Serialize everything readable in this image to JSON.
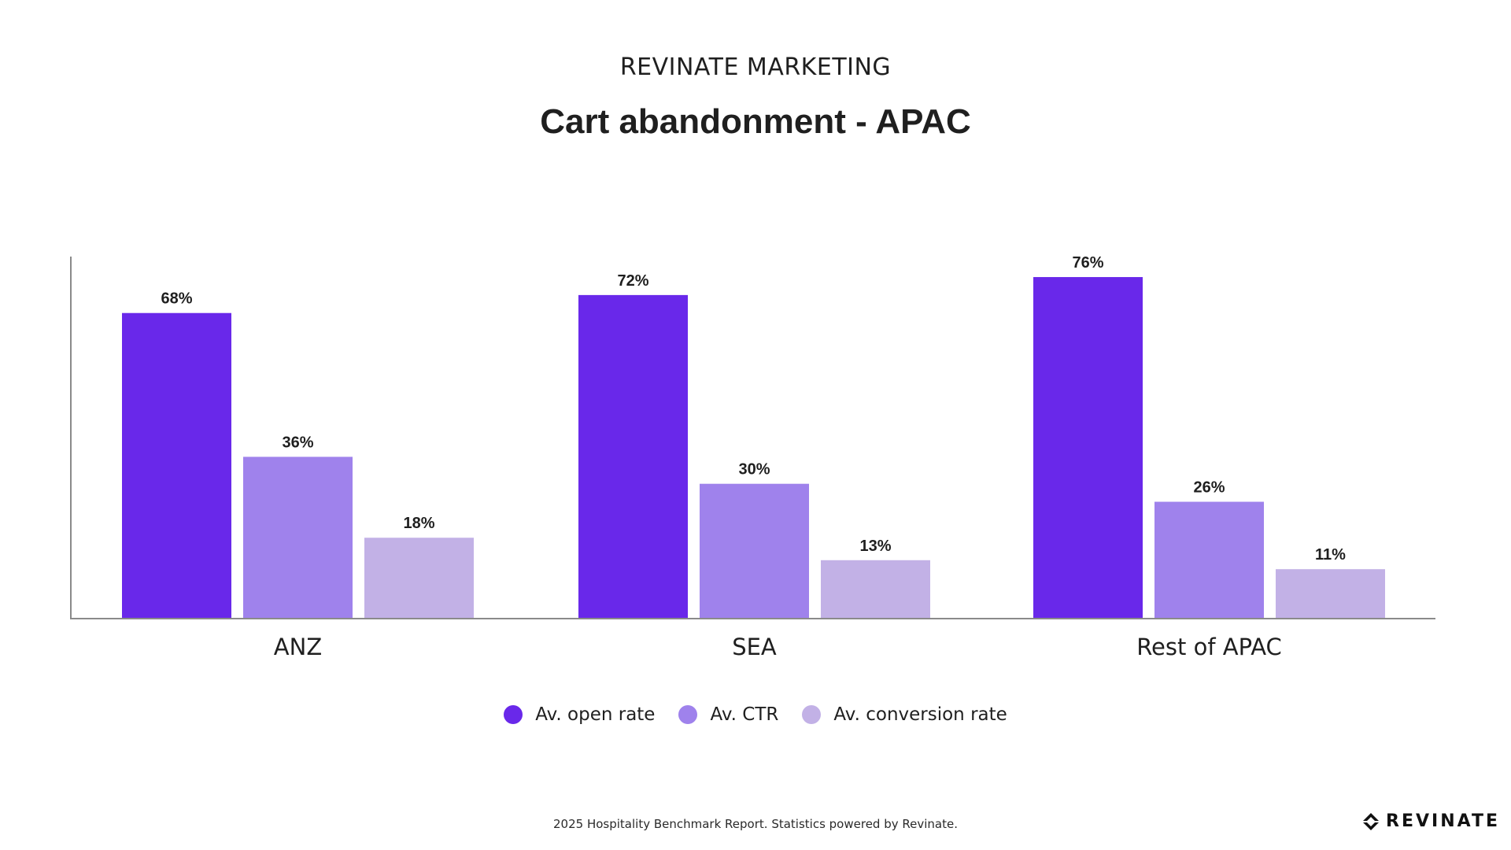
{
  "header": {
    "brand": "REVINATE MARKETING",
    "title": "Cart abandonment - APAC"
  },
  "chart_data": {
    "type": "bar",
    "title": "Cart abandonment - APAC",
    "categories": [
      "ANZ",
      "SEA",
      "Rest of APAC"
    ],
    "series": [
      {
        "name": "Av. open rate",
        "color": "#6928ea",
        "values": [
          68,
          72,
          76
        ],
        "labels": [
          "68%",
          "72%",
          "76%"
        ]
      },
      {
        "name": "Av. CTR",
        "color": "#9f82ec",
        "values": [
          36,
          30,
          26
        ],
        "labels": [
          "36%",
          "30%",
          "26%"
        ]
      },
      {
        "name": "Av. conversion rate",
        "color": "#c2b1e6",
        "values": [
          18,
          13,
          11
        ],
        "labels": [
          "18%",
          "13%",
          "11%"
        ]
      }
    ],
    "ylim": [
      0,
      80
    ],
    "grid": false,
    "legend_position": "bottom"
  },
  "footer": {
    "note": "2025 Hospitality Benchmark Report. Statistics powered by Revinate.",
    "logo_text": "REVINATE"
  }
}
